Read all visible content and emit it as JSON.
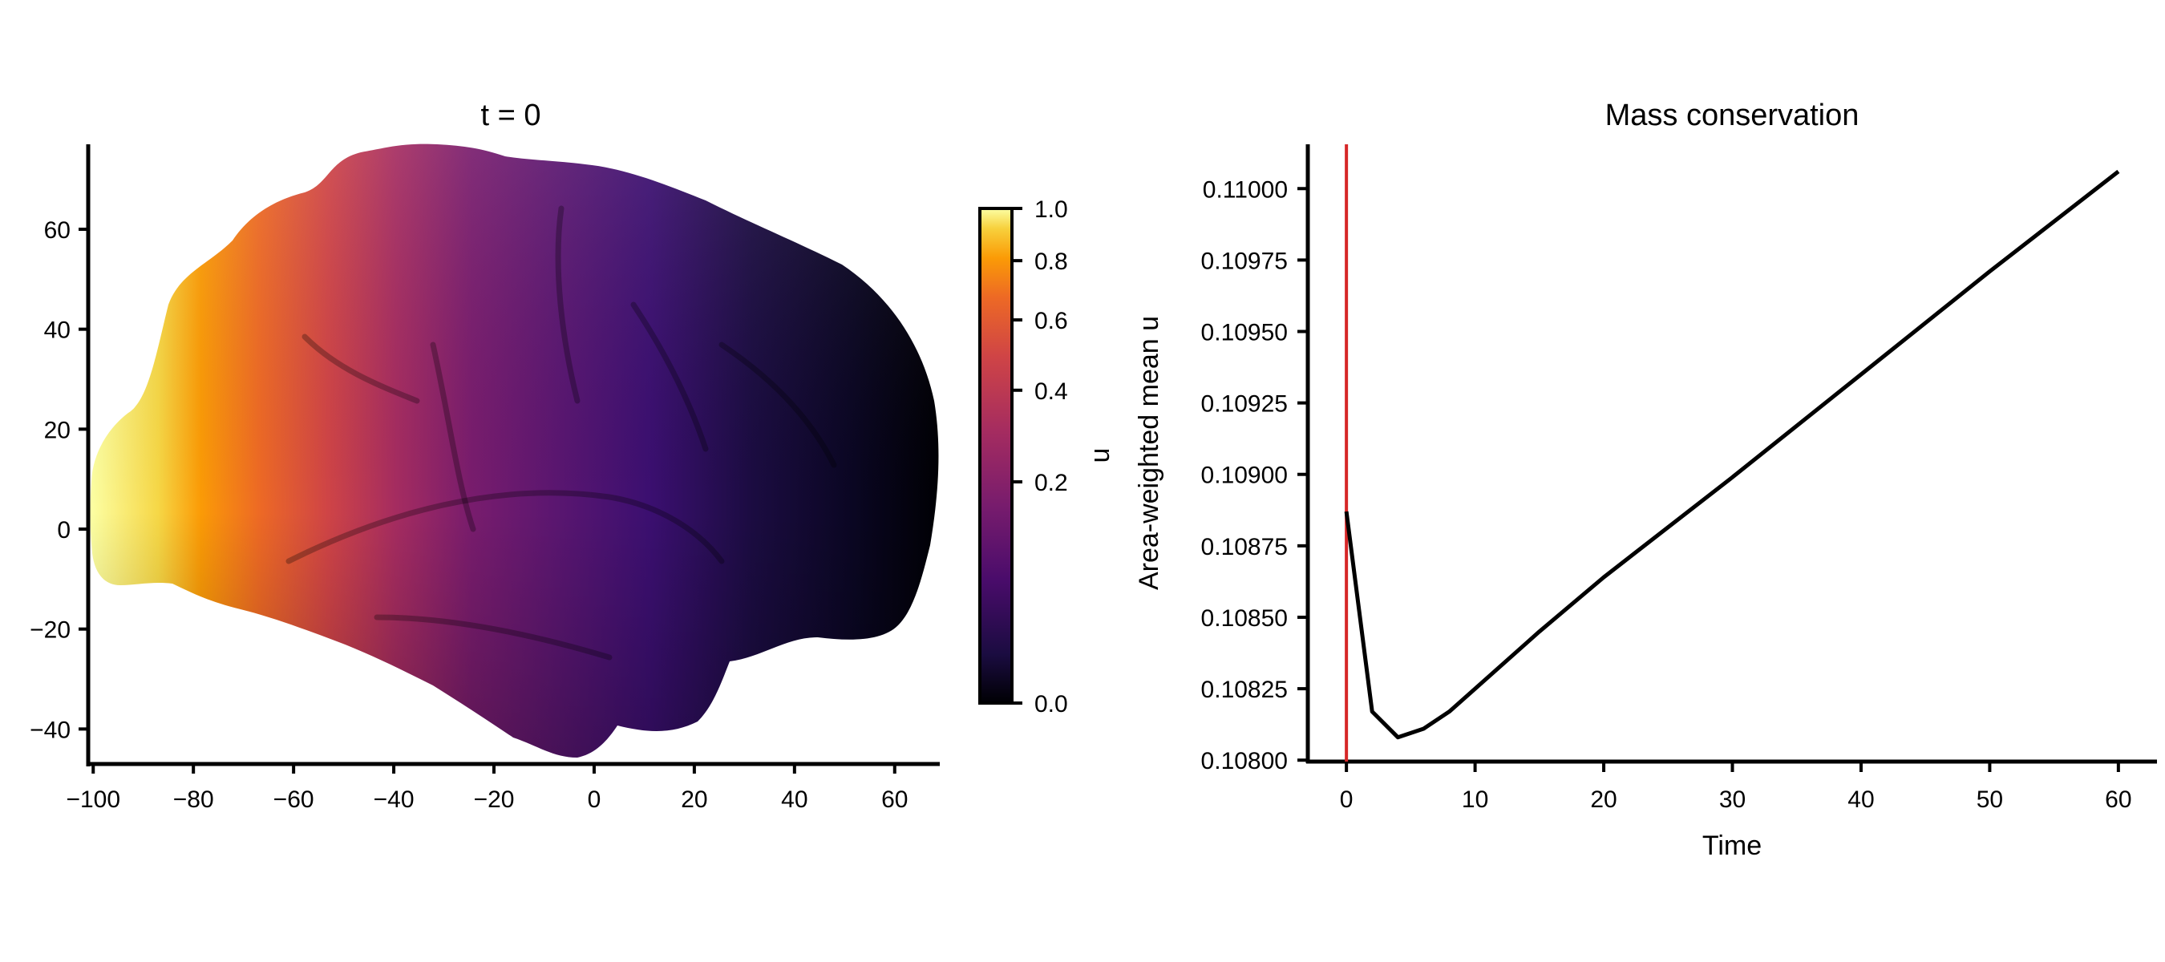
{
  "chart_data": [
    {
      "type": "heatmap",
      "title": "t = 0",
      "xlabel": "",
      "ylabel": "",
      "xlim": [
        -101,
        69
      ],
      "ylim": [
        -47,
        77
      ],
      "x_ticks": [
        -100,
        -80,
        -60,
        -40,
        -20,
        0,
        20,
        40,
        60
      ],
      "y_ticks": [
        -40,
        -20,
        0,
        20,
        40,
        60
      ],
      "colorbar": {
        "label": "u",
        "range": [
          0.0,
          1.0
        ],
        "ticks": [
          0.0,
          0.2,
          0.4,
          0.6,
          0.8,
          1.0
        ],
        "colormap": "inferno",
        "stops": [
          {
            "value": 0.0,
            "color": "#000004"
          },
          {
            "value": 0.1,
            "color": "#1b0c41"
          },
          {
            "value": 0.25,
            "color": "#4a0c6b"
          },
          {
            "value": 0.4,
            "color": "#781c6d"
          },
          {
            "value": 0.55,
            "color": "#a52c60"
          },
          {
            "value": 0.7,
            "color": "#cf4446"
          },
          {
            "value": 0.82,
            "color": "#ed6925"
          },
          {
            "value": 0.9,
            "color": "#fb9b06"
          },
          {
            "value": 0.96,
            "color": "#f7d13d"
          },
          {
            "value": 1.0,
            "color": "#fcffa4"
          }
        ]
      },
      "description_field": "cortical surface lateral view, u high at frontal pole decaying toward occipital"
    },
    {
      "type": "line",
      "title": "Mass conservation",
      "xlabel": "Time",
      "ylabel": "Area-weighted mean u",
      "xlim": [
        -3,
        63
      ],
      "ylim": [
        0.107995,
        0.110155
      ],
      "x_ticks": [
        0,
        10,
        20,
        30,
        40,
        50,
        60
      ],
      "y_ticks": [
        0.108,
        0.10825,
        0.1085,
        0.10875,
        0.109,
        0.10925,
        0.1095,
        0.10975,
        0.11
      ],
      "y_tick_labels": [
        "0.10800",
        "0.10825",
        "0.10850",
        "0.10875",
        "0.10900",
        "0.10925",
        "0.10950",
        "0.10975",
        "0.11000"
      ],
      "grid": false,
      "vline": {
        "x": 0,
        "color": "#d62728"
      },
      "series": [
        {
          "color": "#000000",
          "x": [
            0,
            2,
            4,
            6,
            8,
            10,
            15,
            20,
            30,
            40,
            50,
            60
          ],
          "y": [
            0.10887,
            0.10817,
            0.10808,
            0.10811,
            0.10817,
            0.10825,
            0.10845,
            0.10864,
            0.10899,
            0.10935,
            0.10971,
            0.11006
          ]
        }
      ]
    }
  ]
}
